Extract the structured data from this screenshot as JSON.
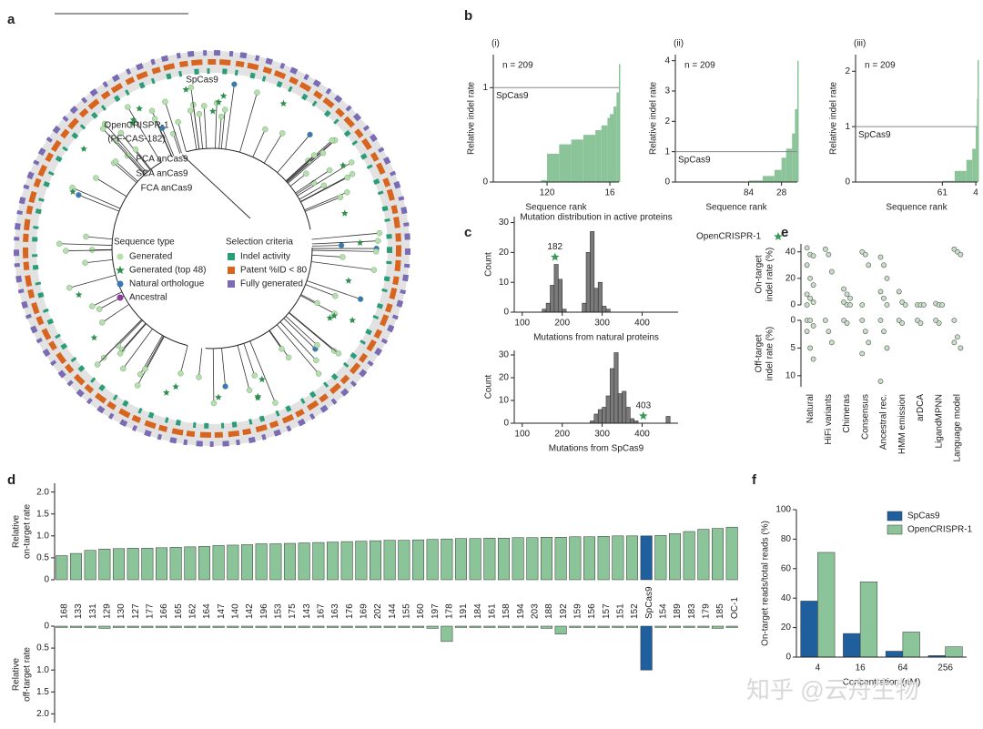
{
  "panel_labels": [
    "a",
    "b",
    "c",
    "d",
    "e",
    "f"
  ],
  "tree": {
    "labels": [
      "SpCas9",
      "OpenCRISPR-1",
      "(PF-CAS-182)",
      "PCA anCas9",
      "SCA anCas9",
      "FCA anCas9"
    ],
    "sequence_type": {
      "title": "Sequence type",
      "items": [
        "Generated",
        "Generated (top 48)",
        "Natural orthologue",
        "Ancestral"
      ]
    },
    "selection_criteria": {
      "title": "Selection criteria",
      "items": [
        "Indel activity",
        "Patent %ID < 80",
        "Fully generated"
      ]
    }
  },
  "watermark": "知乎 @云舟生物",
  "chart_data": [
    {
      "type": "area",
      "subtitle": "(i)",
      "annotation": "n = 209",
      "ylabel": "Relative indel rate",
      "xlabel": "Sequence rank",
      "reference": {
        "value": 1,
        "label": "SpCas9"
      },
      "x": [
        209,
        180,
        150,
        130,
        120,
        100,
        80,
        60,
        40,
        30,
        20,
        16,
        10,
        5,
        1
      ],
      "values": [
        0,
        0,
        0,
        0.02,
        0.3,
        0.4,
        0.45,
        0.5,
        0.55,
        0.6,
        0.68,
        0.72,
        0.8,
        0.95,
        1.25
      ],
      "xlim": [
        209,
        1
      ],
      "ylim": [
        0,
        1.35
      ],
      "xticks": [
        120,
        16
      ],
      "yticks": [
        0,
        1
      ],
      "color": "#8cc49a"
    },
    {
      "type": "area",
      "subtitle": "(ii)",
      "annotation": "n = 209",
      "ylabel": "Relative indel rate",
      "xlabel": "Sequence rank",
      "reference": {
        "value": 1,
        "label": "SpCas9"
      },
      "x": [
        209,
        120,
        100,
        84,
        60,
        40,
        28,
        20,
        10,
        5,
        1
      ],
      "values": [
        0,
        0,
        0,
        0.05,
        0.2,
        0.4,
        0.8,
        1.1,
        1.6,
        2.4,
        4.0
      ],
      "xlim": [
        209,
        1
      ],
      "ylim": [
        0,
        4.2
      ],
      "xticks": [
        84,
        28
      ],
      "yticks": [
        0,
        1,
        2,
        3,
        4
      ],
      "color": "#8cc49a"
    },
    {
      "type": "area",
      "subtitle": "(iii)",
      "annotation": "n = 209",
      "ylabel": "Relative indel rate",
      "xlabel": "Sequence rank",
      "reference": {
        "value": 1,
        "label": "SpCas9"
      },
      "x": [
        209,
        100,
        70,
        61,
        40,
        20,
        10,
        4,
        2,
        1
      ],
      "values": [
        0,
        0,
        0,
        0.02,
        0.2,
        0.4,
        0.6,
        1.0,
        1.5,
        2.2
      ],
      "xlim": [
        209,
        1
      ],
      "ylim": [
        0,
        2.3
      ],
      "xticks": [
        61,
        4
      ],
      "yticks": [
        0,
        1,
        2
      ],
      "color": "#8cc49a"
    },
    {
      "type": "histogram",
      "title": "Mutation distribution in active proteins",
      "xlabel": "Mutations from natural proteins",
      "ylabel": "Count",
      "bins": [
        150,
        160,
        170,
        180,
        190,
        200,
        210,
        220,
        230,
        240,
        250,
        260,
        270,
        280,
        290,
        300,
        310,
        320
      ],
      "values": [
        1,
        3,
        9,
        16,
        11,
        1,
        0,
        0,
        0,
        0,
        3,
        20,
        27,
        8,
        10,
        2,
        1
      ],
      "xlim": [
        80,
        490
      ],
      "ylim": [
        0,
        32
      ],
      "xticks": [
        100,
        200,
        300,
        400
      ],
      "yticks": [
        0,
        10,
        20,
        30
      ],
      "color": "#7a7a7a",
      "highlight": 182,
      "highlight_color": "#3a9a5b",
      "legend": "OpenCRISPR-1"
    },
    {
      "type": "histogram",
      "xlabel": "Mutations from SpCas9",
      "ylabel": "Count",
      "bins": [
        270,
        280,
        290,
        300,
        310,
        320,
        330,
        340,
        350,
        360,
        370,
        380,
        390,
        400,
        410,
        420,
        430,
        440,
        450,
        460,
        470
      ],
      "values": [
        1,
        4,
        6,
        7,
        12,
        24,
        31,
        13,
        14,
        7,
        2,
        1,
        0,
        0,
        0,
        0,
        0,
        0,
        0,
        3
      ],
      "xlim": [
        80,
        490
      ],
      "ylim": [
        0,
        32
      ],
      "xticks": [
        100,
        200,
        300,
        400
      ],
      "yticks": [
        0,
        10,
        20,
        30
      ],
      "color": "#7a7a7a",
      "highlight": 403,
      "highlight_color": "#3a9a5b"
    },
    {
      "type": "strip",
      "categories": [
        "Natural",
        "HiFi variants",
        "Chimeras",
        "Consensus",
        "Ancestral rec.",
        "HMM emission",
        "arDCA",
        "LigandMPNN",
        "Language model"
      ],
      "on_target": [
        [
          43,
          38,
          37,
          30,
          20,
          15,
          8,
          5,
          2,
          0
        ],
        [
          42,
          38,
          25
        ],
        [
          12,
          8,
          5,
          2,
          0,
          0
        ],
        [
          40,
          38,
          30,
          0
        ],
        [
          36,
          30,
          20,
          10,
          5,
          0
        ],
        [
          10,
          2,
          0
        ],
        [
          0,
          0,
          0
        ],
        [
          1,
          0,
          0
        ],
        [
          42,
          40,
          38
        ]
      ],
      "off_target": [
        [
          0,
          0,
          1,
          2,
          5,
          7
        ],
        [
          0,
          2,
          4
        ],
        [
          0,
          0.5
        ],
        [
          0,
          2,
          4,
          6
        ],
        [
          0,
          2,
          5,
          11
        ],
        [
          0,
          0.5
        ],
        [
          0,
          0.5
        ],
        [
          0,
          0.5
        ],
        [
          0,
          3,
          5,
          4
        ]
      ],
      "ylabel_on": [
        "On-target",
        "indel rate (%)"
      ],
      "ylabel_off": [
        "Off-target",
        "indel rate (%)"
      ],
      "ylim_on": [
        0,
        46
      ],
      "yticks_on": [
        0,
        20,
        40
      ],
      "ylim_off": [
        0,
        12
      ],
      "yticks_off": [
        0,
        5,
        10
      ],
      "color": "#c8dfc8"
    },
    {
      "type": "mirrored_bar",
      "categories": [
        "168",
        "133",
        "131",
        "129",
        "130",
        "127",
        "177",
        "166",
        "165",
        "162",
        "164",
        "147",
        "140",
        "142",
        "196",
        "153",
        "175",
        "143",
        "167",
        "163",
        "176",
        "169",
        "202",
        "144",
        "155",
        "160",
        "197",
        "178",
        "191",
        "184",
        "161",
        "158",
        "194",
        "203",
        "188",
        "192",
        "159",
        "156",
        "157",
        "151",
        "152",
        "SpCas9",
        "154",
        "189",
        "183",
        "179",
        "185",
        "OC-1"
      ],
      "on_target": [
        0.55,
        0.6,
        0.67,
        0.7,
        0.71,
        0.72,
        0.72,
        0.73,
        0.74,
        0.75,
        0.76,
        0.78,
        0.79,
        0.8,
        0.82,
        0.82,
        0.83,
        0.84,
        0.85,
        0.86,
        0.87,
        0.88,
        0.89,
        0.9,
        0.9,
        0.91,
        0.92,
        0.93,
        0.94,
        0.94,
        0.95,
        0.95,
        0.96,
        0.96,
        0.97,
        0.97,
        0.98,
        0.98,
        0.99,
        1.0,
        1.0,
        1.0,
        1.01,
        1.05,
        1.1,
        1.15,
        1.17,
        1.2
      ],
      "off_target": [
        0.03,
        0.03,
        0.03,
        0.05,
        0.03,
        0.03,
        0.03,
        0.03,
        0.03,
        0.03,
        0.03,
        0.03,
        0.03,
        0.03,
        0.03,
        0.03,
        0.03,
        0.03,
        0.03,
        0.03,
        0.03,
        0.03,
        0.03,
        0.03,
        0.03,
        0.03,
        0.05,
        0.35,
        0.03,
        0.03,
        0.03,
        0.03,
        0.03,
        0.03,
        0.05,
        0.18,
        0.03,
        0.03,
        0.03,
        0.03,
        0.03,
        1.0,
        0.03,
        0.03,
        0.03,
        0.03,
        0.05,
        0.03
      ],
      "ylabel_on": [
        "Relative",
        "on-target rate"
      ],
      "ylabel_off": [
        "Relative",
        "off-target rate"
      ],
      "ylim": [
        0,
        2.2
      ],
      "yticks": [
        0,
        0.5,
        {
          "value": 1,
          "label": "1.0"
        },
        1.5,
        {
          "value": 2,
          "label": "2.0"
        }
      ],
      "color": "#8cc49a",
      "highlight": "SpCas9",
      "highlight_color": "#1f5f9e"
    },
    {
      "type": "grouped_bar",
      "categories": [
        "4",
        "16",
        "64",
        "256"
      ],
      "series": [
        {
          "name": "SpCas9",
          "color": "#1f5f9e",
          "values": [
            38,
            16,
            4,
            1
          ]
        },
        {
          "name": "OpenCRISPR-1",
          "color": "#8cc49a",
          "values": [
            71,
            51,
            17,
            7
          ]
        }
      ],
      "ylabel": "On-target reads/total reads (%)",
      "xlabel": "Concentration (nM)",
      "ylim": [
        0,
        100
      ],
      "yticks": [
        0,
        20,
        40,
        60,
        80,
        100
      ]
    }
  ]
}
